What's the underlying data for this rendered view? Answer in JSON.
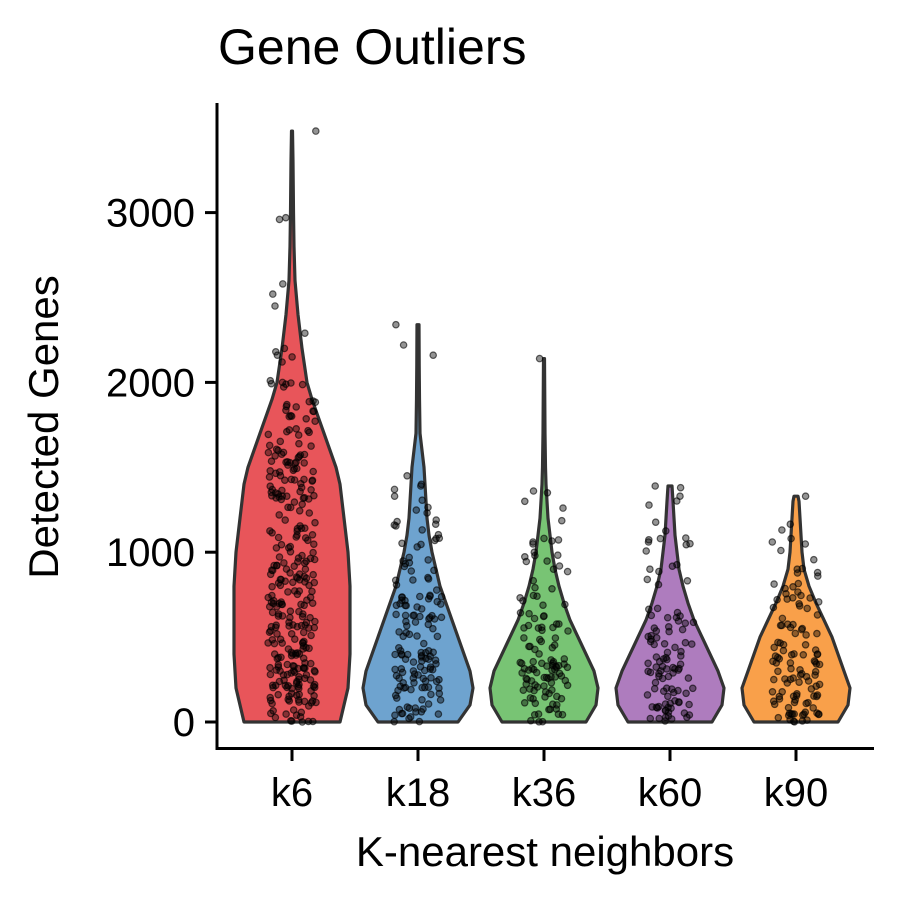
{
  "chart_data": {
    "type": "violin",
    "title": "Gene Outliers",
    "xlabel": "K-nearest neighbors",
    "ylabel": "Detected Genes",
    "categories": [
      "k6",
      "k18",
      "k36",
      "k60",
      "k90"
    ],
    "ylim": [
      -150,
      3620
    ],
    "yticks": [
      0,
      1000,
      2000,
      3000
    ],
    "grid": false,
    "legend": "none",
    "colors": [
      "#e8555a",
      "#6ea3cf",
      "#78c474",
      "#ae7cbe",
      "#f9a04a"
    ],
    "outline_color": "#333333",
    "point_color": "#000000",
    "series": [
      {
        "category": "k6",
        "profile": [
          [
            0,
            48
          ],
          [
            100,
            52
          ],
          [
            200,
            56
          ],
          [
            300,
            57
          ],
          [
            400,
            58
          ],
          [
            500,
            58
          ],
          [
            600,
            58
          ],
          [
            700,
            58
          ],
          [
            800,
            58
          ],
          [
            900,
            57
          ],
          [
            1000,
            56
          ],
          [
            1100,
            54
          ],
          [
            1200,
            52
          ],
          [
            1300,
            50
          ],
          [
            1400,
            48
          ],
          [
            1500,
            44
          ],
          [
            1600,
            38
          ],
          [
            1700,
            32
          ],
          [
            1800,
            26
          ],
          [
            1900,
            20
          ],
          [
            2000,
            15
          ],
          [
            2200,
            10
          ],
          [
            2400,
            6
          ],
          [
            2600,
            3
          ],
          [
            2800,
            2
          ],
          [
            3000,
            1.5
          ],
          [
            3300,
            1
          ],
          [
            3480,
            0.5
          ]
        ],
        "outliers": [
          3480,
          2970,
          2960,
          2580,
          2520,
          2450,
          2290,
          2200,
          2180,
          2160,
          2150,
          2120,
          2010,
          2000
        ]
      },
      {
        "category": "k18",
        "profile": [
          [
            0,
            40
          ],
          [
            100,
            52
          ],
          [
            200,
            55
          ],
          [
            300,
            52
          ],
          [
            400,
            46
          ],
          [
            500,
            40
          ],
          [
            600,
            34
          ],
          [
            700,
            28
          ],
          [
            800,
            22
          ],
          [
            900,
            18
          ],
          [
            1000,
            14
          ],
          [
            1100,
            11
          ],
          [
            1200,
            9
          ],
          [
            1300,
            8
          ],
          [
            1400,
            7
          ],
          [
            1500,
            6
          ],
          [
            1600,
            4
          ],
          [
            1700,
            2
          ],
          [
            1900,
            1.5
          ],
          [
            2100,
            1.2
          ],
          [
            2340,
            1
          ]
        ],
        "outliers": [
          2340,
          2220,
          2160,
          1450,
          1400,
          1390,
          1370,
          1330,
          1180,
          1080
        ]
      },
      {
        "category": "k36",
        "profile": [
          [
            0,
            42
          ],
          [
            100,
            52
          ],
          [
            200,
            54
          ],
          [
            300,
            50
          ],
          [
            400,
            42
          ],
          [
            500,
            34
          ],
          [
            600,
            26
          ],
          [
            700,
            20
          ],
          [
            800,
            15
          ],
          [
            900,
            11
          ],
          [
            1000,
            8
          ],
          [
            1100,
            6
          ],
          [
            1200,
            4
          ],
          [
            1300,
            3
          ],
          [
            1400,
            2
          ],
          [
            1500,
            1.5
          ],
          [
            1700,
            1
          ],
          [
            2140,
            0.5
          ]
        ],
        "outliers": [
          2140,
          1350,
          1300,
          1260,
          1060,
          1000,
          980,
          900
        ]
      },
      {
        "category": "k60",
        "profile": [
          [
            0,
            42
          ],
          [
            100,
            52
          ],
          [
            200,
            54
          ],
          [
            300,
            48
          ],
          [
            400,
            40
          ],
          [
            500,
            32
          ],
          [
            600,
            24
          ],
          [
            700,
            18
          ],
          [
            800,
            13
          ],
          [
            900,
            9
          ],
          [
            1000,
            7
          ],
          [
            1100,
            5
          ],
          [
            1200,
            4
          ],
          [
            1300,
            3
          ],
          [
            1390,
            2
          ]
        ],
        "outliers": [
          1390,
          1380,
          1330,
          1080,
          1060,
          1050,
          900
        ]
      },
      {
        "category": "k90",
        "profile": [
          [
            0,
            42
          ],
          [
            100,
            52
          ],
          [
            200,
            54
          ],
          [
            300,
            48
          ],
          [
            400,
            42
          ],
          [
            500,
            36
          ],
          [
            600,
            28
          ],
          [
            700,
            20
          ],
          [
            800,
            13
          ],
          [
            900,
            8
          ],
          [
            1000,
            6
          ],
          [
            1100,
            5
          ],
          [
            1200,
            4
          ],
          [
            1300,
            3
          ],
          [
            1330,
            2
          ]
        ],
        "outliers": [
          1330,
          1080,
          1060,
          1010,
          900,
          880
        ]
      }
    ]
  }
}
